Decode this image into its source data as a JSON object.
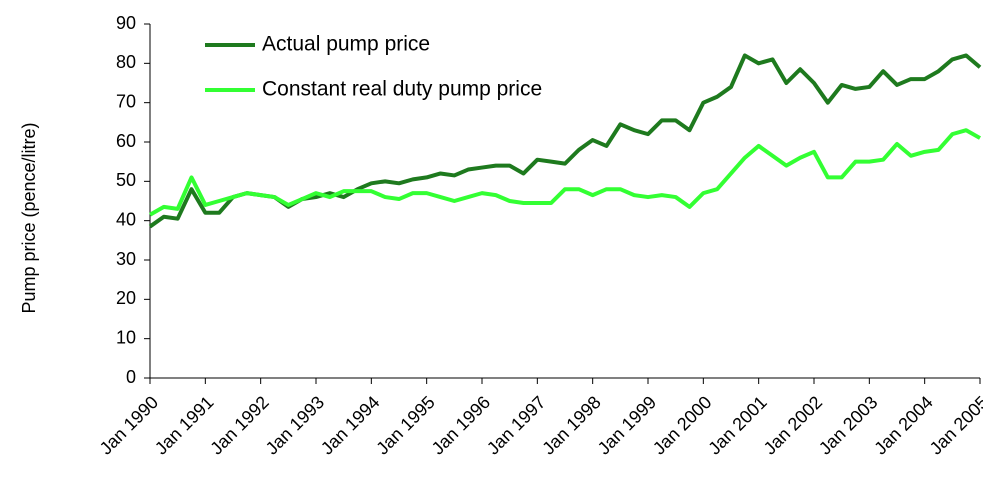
{
  "chart_data": {
    "type": "line",
    "y_label": "Pump price (pence/litre)",
    "categories": [
      "Jan 1990",
      null,
      null,
      null,
      "Jan 1991",
      null,
      null,
      null,
      "Jan 1992",
      null,
      null,
      null,
      "Jan 1993",
      null,
      null,
      null,
      "Jan 1994",
      null,
      null,
      null,
      "Jan 1995",
      null,
      null,
      null,
      "Jan 1996",
      null,
      null,
      null,
      "Jan 1997",
      null,
      null,
      null,
      "Jan 1998",
      null,
      null,
      null,
      "Jan 1999",
      null,
      null,
      null,
      "Jan 2000",
      null,
      null,
      null,
      "Jan 2001",
      null,
      null,
      null,
      "Jan 2002",
      null,
      null,
      null,
      "Jan 2003",
      null,
      null,
      null,
      "Jan 2004",
      null,
      null,
      null,
      "Jan 2005"
    ],
    "series": [
      {
        "name": "Actual pump price",
        "color": "#1e7a1e",
        "values": [
          38.5,
          41,
          40.5,
          48,
          42,
          42,
          46,
          47,
          46.5,
          46,
          43.5,
          45.5,
          46,
          47,
          46,
          48,
          49.5,
          50,
          49.5,
          50.5,
          51,
          52,
          51.5,
          53,
          53.5,
          54,
          54,
          52,
          55.5,
          55,
          54.5,
          58,
          60.5,
          59,
          64.5,
          63,
          62,
          65.5,
          65.5,
          63,
          70,
          71.5,
          74,
          82,
          80,
          81,
          75,
          78.5,
          75,
          70,
          74.5,
          73.5,
          74,
          78,
          74.5,
          76,
          76,
          78,
          81,
          82,
          79
        ]
      },
      {
        "name": "Constant real duty pump price",
        "color": "#33ff33",
        "values": [
          41.5,
          43.5,
          43,
          51,
          44,
          45,
          46,
          47,
          46.5,
          46,
          44,
          45.5,
          47,
          46,
          47.5,
          47.5,
          47.5,
          46,
          45.5,
          47,
          47,
          46,
          45,
          46,
          47,
          46.5,
          45,
          44.5,
          44.5,
          44.5,
          48,
          48,
          46.5,
          48,
          48,
          46.5,
          46,
          46.5,
          46,
          43.5,
          47,
          48,
          52,
          56,
          59,
          56.5,
          54,
          56,
          57.5,
          51,
          51,
          55,
          55,
          55.5,
          59.5,
          56.5,
          57.5,
          58,
          62,
          63,
          61
        ]
      }
    ],
    "ylim": [
      0,
      90
    ],
    "yticks": [
      0,
      10,
      20,
      30,
      40,
      50,
      60,
      70,
      80,
      90
    ],
    "grid": false
  }
}
